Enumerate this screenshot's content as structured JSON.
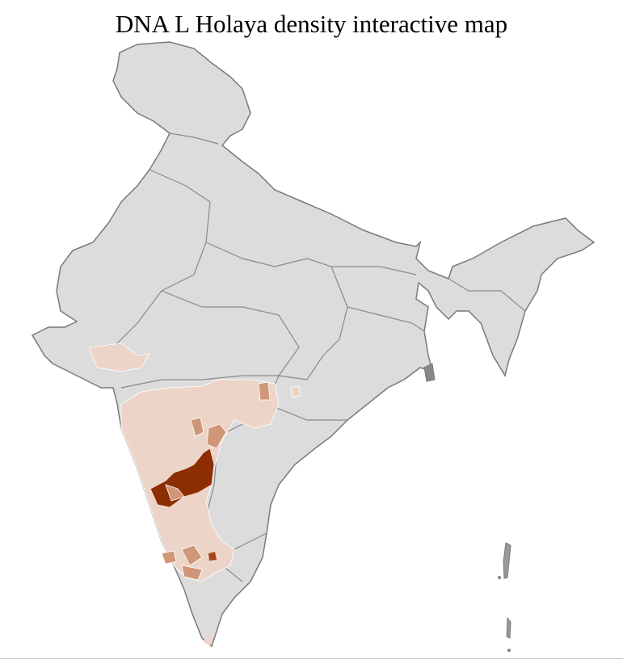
{
  "title": "DNA L Holaya density interactive map",
  "colors": {
    "no_data": "#dcdcdc",
    "border": "#7a7a7a",
    "district_border": "#ffffff",
    "low": "#ecd5c8",
    "medium": "#cf9677",
    "high": "#8c2d04"
  },
  "regions": [
    {
      "name": "Gujarat (partial)",
      "level": "low"
    },
    {
      "name": "Maharashtra",
      "level": "low"
    },
    {
      "name": "Karnataka",
      "level": "low"
    },
    {
      "name": "Kerala (partial)",
      "level": "low"
    },
    {
      "name": "Northern Karnataka cluster",
      "level": "high"
    },
    {
      "name": "Scattered districts",
      "level": "medium"
    }
  ]
}
